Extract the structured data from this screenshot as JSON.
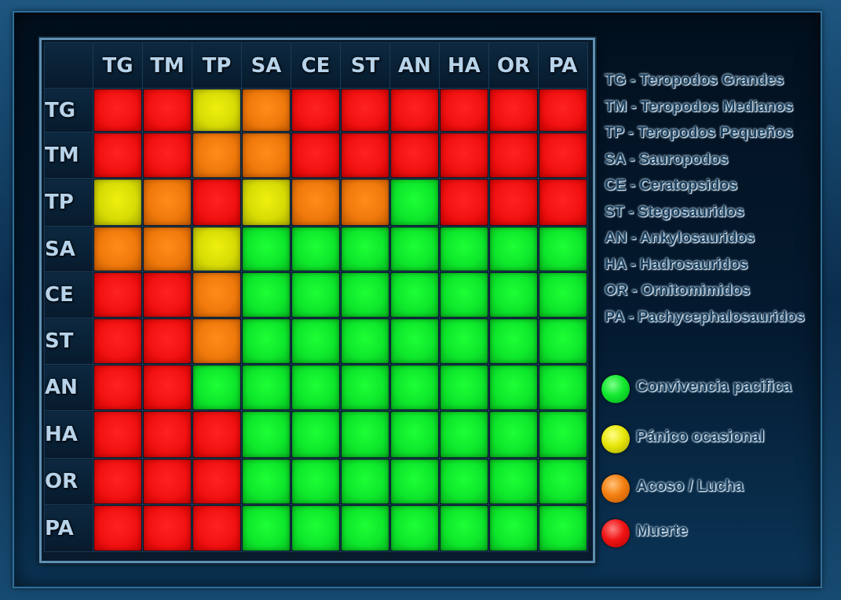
{
  "matrix": {
    "columns": [
      "TG",
      "TM",
      "TP",
      "SA",
      "CE",
      "ST",
      "AN",
      "HA",
      "OR",
      "PA"
    ],
    "rows": [
      {
        "label": "TG",
        "cells": [
          "red",
          "red",
          "yellow",
          "orange",
          "red",
          "red",
          "red",
          "red",
          "red",
          "red"
        ]
      },
      {
        "label": "TM",
        "cells": [
          "red",
          "red",
          "orange",
          "orange",
          "red",
          "red",
          "red",
          "red",
          "red",
          "red"
        ]
      },
      {
        "label": "TP",
        "cells": [
          "yellow",
          "orange",
          "red",
          "yellow",
          "orange",
          "orange",
          "green",
          "red",
          "red",
          "red"
        ]
      },
      {
        "label": "SA",
        "cells": [
          "orange",
          "orange",
          "yellow",
          "green",
          "green",
          "green",
          "green",
          "green",
          "green",
          "green"
        ]
      },
      {
        "label": "CE",
        "cells": [
          "red",
          "red",
          "orange",
          "green",
          "green",
          "green",
          "green",
          "green",
          "green",
          "green"
        ]
      },
      {
        "label": "ST",
        "cells": [
          "red",
          "red",
          "orange",
          "green",
          "green",
          "green",
          "green",
          "green",
          "green",
          "green"
        ]
      },
      {
        "label": "AN",
        "cells": [
          "red",
          "red",
          "green",
          "green",
          "green",
          "green",
          "green",
          "green",
          "green",
          "green"
        ]
      },
      {
        "label": "HA",
        "cells": [
          "red",
          "red",
          "red",
          "green",
          "green",
          "green",
          "green",
          "green",
          "green",
          "green"
        ]
      },
      {
        "label": "OR",
        "cells": [
          "red",
          "red",
          "red",
          "green",
          "green",
          "green",
          "green",
          "green",
          "green",
          "green"
        ]
      },
      {
        "label": "PA",
        "cells": [
          "red",
          "red",
          "red",
          "green",
          "green",
          "green",
          "green",
          "green",
          "green",
          "green"
        ]
      }
    ]
  },
  "abbreviations": [
    "TG - Teropodos Grandes",
    "TM - Teropodos Medianos",
    "TP - Teropodos Pequeños",
    "SA - Sauropodos",
    "CE - Ceratopsidos",
    "ST - Stegosauridos",
    "AN - Ankylosauridos",
    "HA - Hadrosauridos",
    "OR - Ornitomimidos",
    "PA - Pachycephalosauridos"
  ],
  "legend": [
    {
      "color": "green",
      "label": "Convivencia pacifica"
    },
    {
      "color": "yellow",
      "label": "Pánico ocasional"
    },
    {
      "color": "orange",
      "label": "Acoso / Lucha"
    },
    {
      "color": "red",
      "label": "Muerte"
    }
  ],
  "colors": {
    "green": "#0ee82c",
    "yellow": "#d8dc05",
    "orange": "#f07a0c",
    "red": "#f21212",
    "header_text": "#b7d3ea",
    "background": "#041a30"
  }
}
